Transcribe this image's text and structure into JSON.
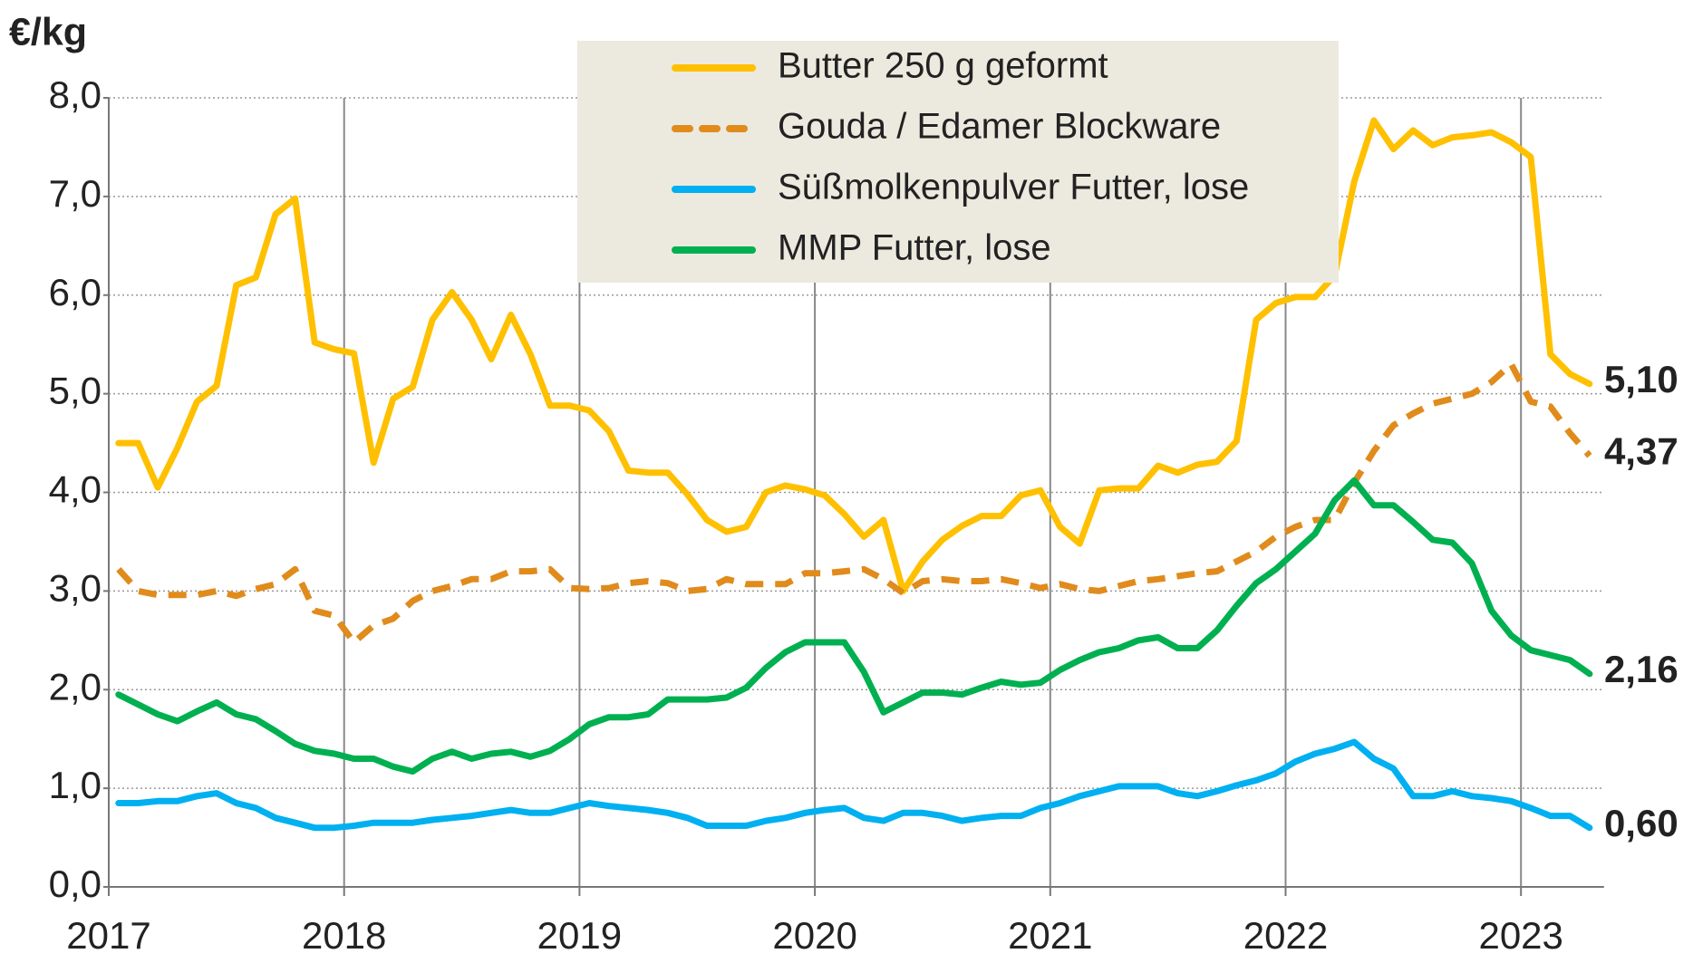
{
  "chart_data": {
    "type": "line",
    "y_label": "€/kg",
    "categories": [
      "2017",
      null,
      null,
      null,
      null,
      null,
      null,
      null,
      null,
      null,
      null,
      null,
      "2018",
      null,
      null,
      null,
      null,
      null,
      null,
      null,
      null,
      null,
      null,
      null,
      "2019",
      null,
      null,
      null,
      null,
      null,
      null,
      null,
      null,
      null,
      null,
      null,
      "2020",
      null,
      null,
      null,
      null,
      null,
      null,
      null,
      null,
      null,
      null,
      null,
      "2021",
      null,
      null,
      null,
      null,
      null,
      null,
      null,
      null,
      null,
      null,
      null,
      "2022",
      null,
      null,
      null,
      null,
      null,
      null,
      null,
      null,
      null,
      null,
      null,
      "2023",
      null,
      null,
      null
    ],
    "ylim": [
      0,
      8
    ],
    "yticks": [
      {
        "value": 0,
        "label": "0,0"
      },
      {
        "value": 1,
        "label": "1,0"
      },
      {
        "value": 2,
        "label": "2,0"
      },
      {
        "value": 3,
        "label": "3,0"
      },
      {
        "value": 4,
        "label": "4,0"
      },
      {
        "value": 5,
        "label": "5,0"
      },
      {
        "value": 6,
        "label": "6,0"
      },
      {
        "value": 7,
        "label": "7,0"
      },
      {
        "value": 8,
        "label": "8,0"
      }
    ],
    "grid": true,
    "legend": "upper center",
    "series": [
      {
        "name": "Butter 250 g geformt",
        "color": "#ffc000",
        "dash": "solid",
        "values": [
          4.5,
          4.5,
          4.05,
          4.45,
          4.92,
          5.08,
          6.1,
          6.18,
          6.82,
          6.98,
          5.52,
          5.45,
          5.41,
          4.3,
          4.95,
          5.07,
          5.75,
          6.03,
          5.75,
          5.35,
          5.8,
          5.4,
          4.88,
          4.88,
          4.83,
          4.62,
          4.22,
          4.2,
          4.2,
          3.98,
          3.72,
          3.6,
          3.65,
          4.0,
          4.07,
          4.03,
          3.97,
          3.78,
          3.55,
          3.72,
          3.0,
          3.3,
          3.52,
          3.66,
          3.76,
          3.76,
          3.97,
          4.02,
          3.65,
          3.48,
          4.02,
          4.04,
          4.04,
          4.27,
          4.2,
          4.28,
          4.31,
          4.52,
          5.75,
          5.92,
          5.98,
          5.98,
          6.2,
          7.15,
          7.77,
          7.48,
          7.67,
          7.52,
          7.6,
          7.62,
          7.65,
          7.55,
          7.4,
          5.4,
          5.2,
          5.1
        ],
        "value_labels": [
          null,
          null,
          null,
          null,
          null,
          null,
          null,
          null,
          null,
          null,
          null,
          null,
          null,
          null,
          null,
          null,
          null,
          null,
          null,
          null,
          null,
          null,
          null,
          null,
          null,
          null,
          null,
          null,
          null,
          null,
          null,
          null,
          null,
          null,
          null,
          null,
          null,
          null,
          null,
          null,
          null,
          null,
          null,
          null,
          null,
          null,
          null,
          null,
          null,
          null,
          null,
          null,
          null,
          null,
          null,
          null,
          null,
          null,
          null,
          null,
          null,
          null,
          null,
          null,
          null,
          null,
          null,
          null,
          null,
          null,
          null,
          null,
          null,
          null,
          null,
          "5,10"
        ]
      },
      {
        "name": "Gouda / Edamer Blockware",
        "color": "#e08b1c",
        "dash": "dashed",
        "values": [
          3.22,
          3.0,
          2.96,
          2.96,
          2.96,
          3.0,
          2.95,
          3.02,
          3.07,
          3.22,
          2.8,
          2.75,
          2.48,
          2.65,
          2.72,
          2.9,
          3.0,
          3.05,
          3.12,
          3.12,
          3.2,
          3.2,
          3.22,
          3.03,
          3.02,
          3.03,
          3.08,
          3.1,
          3.08,
          3.0,
          3.02,
          3.12,
          3.07,
          3.07,
          3.07,
          3.18,
          3.18,
          3.2,
          3.22,
          3.12,
          2.98,
          3.1,
          3.12,
          3.1,
          3.1,
          3.12,
          3.08,
          3.03,
          3.07,
          3.02,
          3.0,
          3.05,
          3.1,
          3.12,
          3.15,
          3.18,
          3.2,
          3.3,
          3.4,
          3.55,
          3.65,
          3.72,
          3.72,
          4.1,
          4.42,
          4.68,
          4.8,
          4.9,
          4.95,
          5.0,
          5.12,
          5.3,
          4.92,
          4.87,
          4.6,
          4.37
        ],
        "value_labels": [
          null,
          null,
          null,
          null,
          null,
          null,
          null,
          null,
          null,
          null,
          null,
          null,
          null,
          null,
          null,
          null,
          null,
          null,
          null,
          null,
          null,
          null,
          null,
          null,
          null,
          null,
          null,
          null,
          null,
          null,
          null,
          null,
          null,
          null,
          null,
          null,
          null,
          null,
          null,
          null,
          null,
          null,
          null,
          null,
          null,
          null,
          null,
          null,
          null,
          null,
          null,
          null,
          null,
          null,
          null,
          null,
          null,
          null,
          null,
          null,
          null,
          null,
          null,
          null,
          null,
          null,
          null,
          null,
          null,
          null,
          null,
          null,
          null,
          null,
          null,
          "4,37"
        ]
      },
      {
        "name": "Süßmolkenpulver Futter, lose",
        "color": "#00b0f0",
        "dash": "solid",
        "values": [
          0.85,
          0.85,
          0.87,
          0.87,
          0.92,
          0.95,
          0.85,
          0.8,
          0.7,
          0.65,
          0.6,
          0.6,
          0.62,
          0.65,
          0.65,
          0.65,
          0.68,
          0.7,
          0.72,
          0.75,
          0.78,
          0.75,
          0.75,
          0.8,
          0.85,
          0.82,
          0.8,
          0.78,
          0.75,
          0.7,
          0.62,
          0.62,
          0.62,
          0.67,
          0.7,
          0.75,
          0.78,
          0.8,
          0.7,
          0.67,
          0.75,
          0.75,
          0.72,
          0.67,
          0.7,
          0.72,
          0.72,
          0.8,
          0.85,
          0.92,
          0.97,
          1.02,
          1.02,
          1.02,
          0.95,
          0.92,
          0.97,
          1.03,
          1.08,
          1.15,
          1.27,
          1.35,
          1.4,
          1.47,
          1.3,
          1.2,
          0.92,
          0.92,
          0.97,
          0.92,
          0.9,
          0.87,
          0.8,
          0.72,
          0.72,
          0.6
        ],
        "value_labels": [
          null,
          null,
          null,
          null,
          null,
          null,
          null,
          null,
          null,
          null,
          null,
          null,
          null,
          null,
          null,
          null,
          null,
          null,
          null,
          null,
          null,
          null,
          null,
          null,
          null,
          null,
          null,
          null,
          null,
          null,
          null,
          null,
          null,
          null,
          null,
          null,
          null,
          null,
          null,
          null,
          null,
          null,
          null,
          null,
          null,
          null,
          null,
          null,
          null,
          null,
          null,
          null,
          null,
          null,
          null,
          null,
          null,
          null,
          null,
          null,
          null,
          null,
          null,
          null,
          null,
          null,
          null,
          null,
          null,
          null,
          null,
          null,
          null,
          null,
          null,
          "0,60"
        ]
      },
      {
        "name": "MMP Futter, lose",
        "color": "#00b050",
        "dash": "solid",
        "values": [
          1.95,
          1.85,
          1.75,
          1.68,
          1.78,
          1.87,
          1.75,
          1.7,
          1.58,
          1.45,
          1.38,
          1.35,
          1.3,
          1.3,
          1.22,
          1.17,
          1.3,
          1.37,
          1.3,
          1.35,
          1.37,
          1.32,
          1.38,
          1.5,
          1.65,
          1.72,
          1.72,
          1.75,
          1.9,
          1.9,
          1.9,
          1.92,
          2.02,
          2.22,
          2.38,
          2.48,
          2.48,
          2.48,
          2.18,
          1.77,
          1.87,
          1.97,
          1.97,
          1.95,
          2.02,
          2.08,
          2.05,
          2.07,
          2.2,
          2.3,
          2.38,
          2.42,
          2.5,
          2.53,
          2.42,
          2.42,
          2.6,
          2.85,
          3.08,
          3.22,
          3.4,
          3.58,
          3.92,
          4.12,
          3.87,
          3.87,
          3.7,
          3.52,
          3.49,
          3.28,
          2.8,
          2.55,
          2.4,
          2.35,
          2.3,
          2.16
        ],
        "value_labels": [
          null,
          null,
          null,
          null,
          null,
          null,
          null,
          null,
          null,
          null,
          null,
          null,
          null,
          null,
          null,
          null,
          null,
          null,
          null,
          null,
          null,
          null,
          null,
          null,
          null,
          null,
          null,
          null,
          null,
          null,
          null,
          null,
          null,
          null,
          null,
          null,
          null,
          null,
          null,
          null,
          null,
          null,
          null,
          null,
          null,
          null,
          null,
          null,
          null,
          null,
          null,
          null,
          null,
          null,
          null,
          null,
          null,
          null,
          null,
          null,
          null,
          null,
          null,
          null,
          null,
          null,
          null,
          null,
          null,
          null,
          null,
          null,
          null,
          null,
          null,
          "2,16"
        ]
      }
    ]
  }
}
